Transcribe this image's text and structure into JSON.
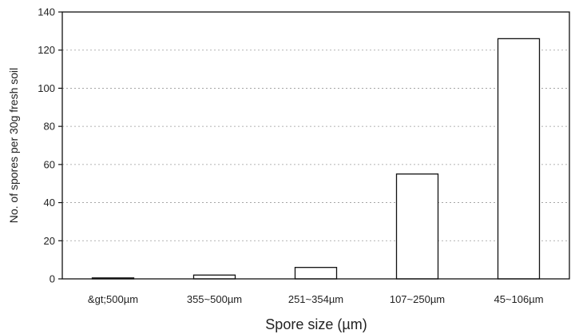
{
  "chart_data": {
    "type": "bar",
    "title": "",
    "xlabel": "Spore size (µm)",
    "ylabel": "No. of spores per 30g fresh soil",
    "categories": [
      "&gt;500µm",
      "355~500µm",
      "251~354µm",
      "107~250µm",
      "45~106µm"
    ],
    "values": [
      0.5,
      2,
      6,
      55,
      126
    ],
    "ylim": [
      0,
      140
    ],
    "yticks": [
      0,
      20,
      40,
      60,
      80,
      100,
      120,
      140
    ],
    "grid": "dotted horizontal",
    "legend": "none",
    "colors": {
      "bar_fill": "#ffffff",
      "bar_stroke": "#111111",
      "axis": "#111111",
      "grid": "#9a9a9a",
      "text": "#222222"
    }
  }
}
